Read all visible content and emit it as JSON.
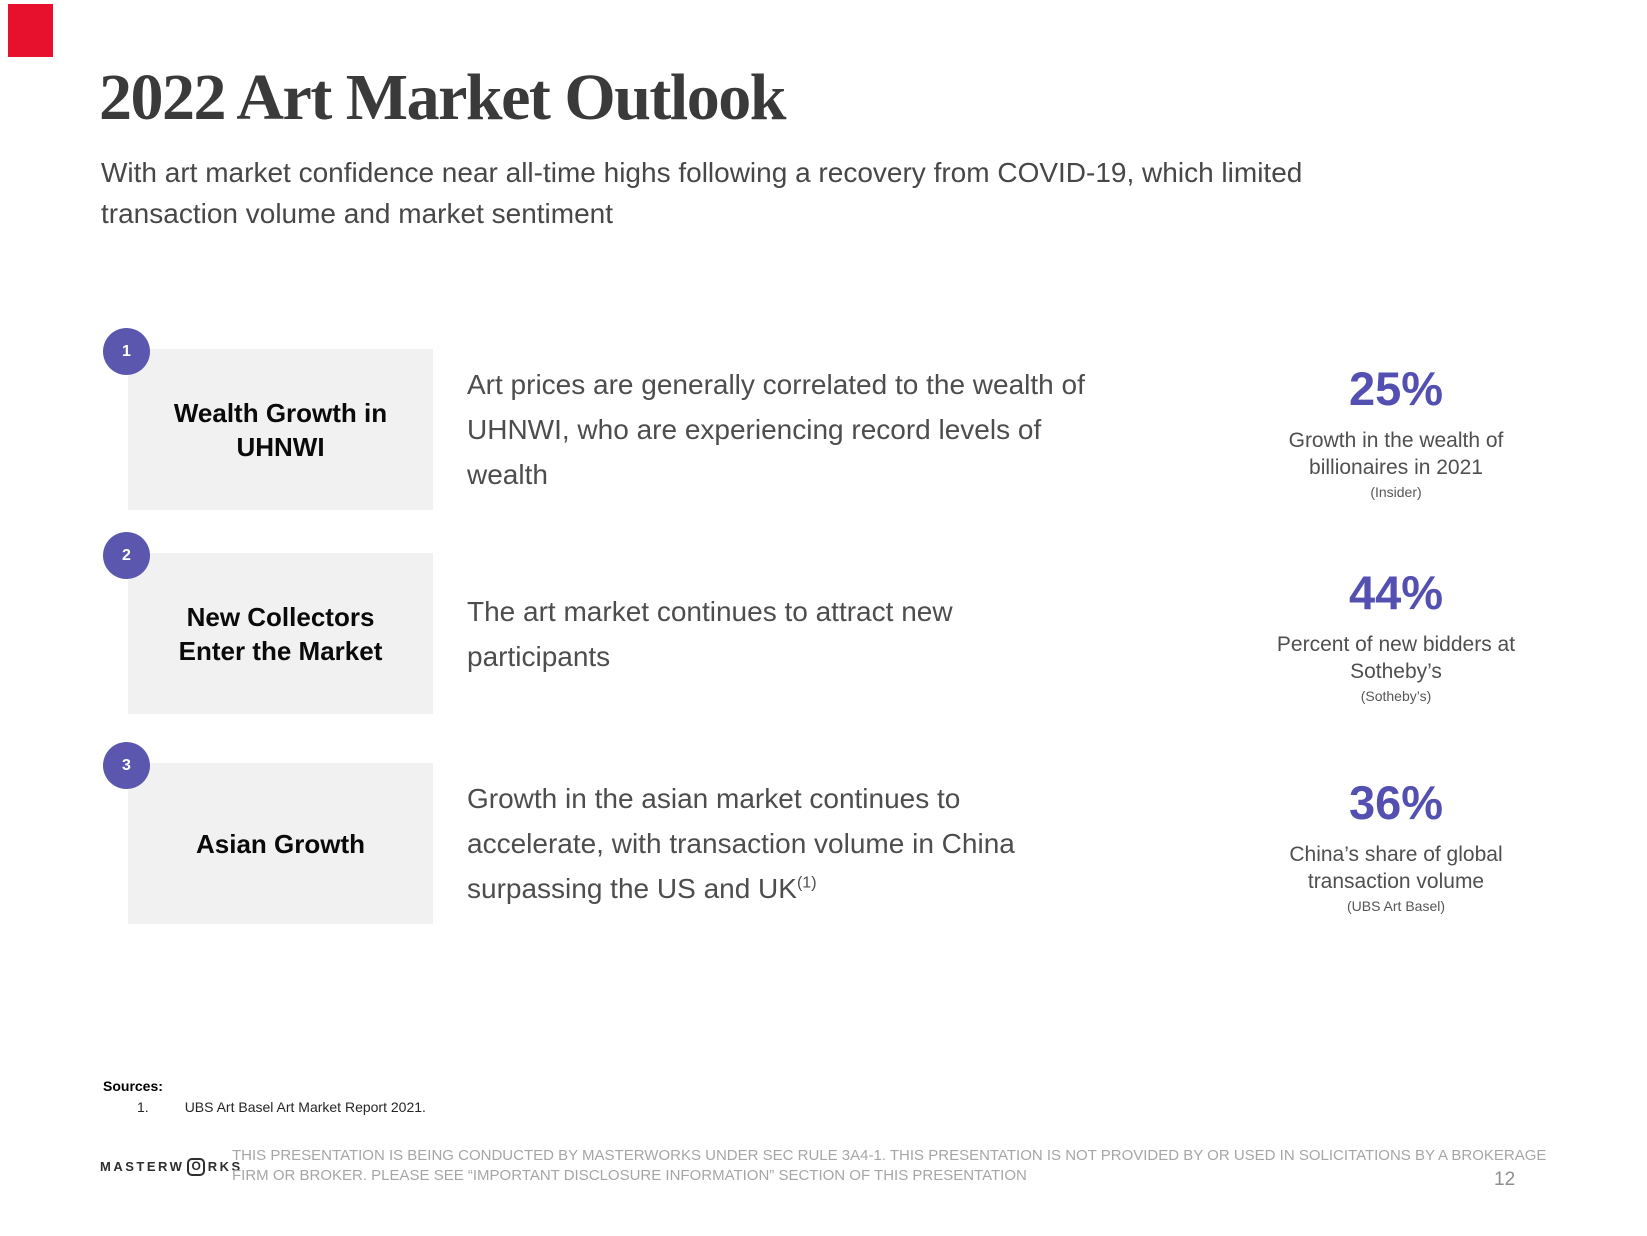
{
  "corner_marker": {
    "color": "#e8112d"
  },
  "header": {
    "title": "2022 Art Market Outlook",
    "subtitle_lines": [
      "With art market confidence near all-time highs following a recovery from COVID-19, which limited",
      "transaction volume and market sentiment"
    ]
  },
  "rows": [
    {
      "number": "1",
      "label_lines": [
        "Wealth Growth in",
        "UHNWI"
      ],
      "desc_lines": [
        "Art prices are generally correlated to the wealth of",
        "UHNWI, who are experiencing record levels of",
        "wealth"
      ],
      "stat": {
        "value": "25%",
        "caption_lines": [
          "Growth in the wealth of",
          "billionaires in 2021"
        ],
        "source": "(Insider)"
      }
    },
    {
      "number": "2",
      "label_lines": [
        "New Collectors",
        "Enter the Market"
      ],
      "desc_lines": [
        "The art market continues to attract new",
        "participants"
      ],
      "stat": {
        "value": "44%",
        "caption_lines": [
          "Percent of new bidders at",
          "Sotheby’s"
        ],
        "source": "(Sotheby’s)"
      }
    },
    {
      "number": "3",
      "label_lines": [
        "Asian Growth"
      ],
      "desc_lines": [
        "Growth in the asian market continues to",
        "accelerate, with transaction volume in China",
        "surpassing the US and UK"
      ],
      "desc_superscript": "(1)",
      "stat": {
        "value": "36%",
        "caption_lines": [
          "China’s share of global",
          "transaction volume"
        ],
        "source": "(UBS Art Basel)"
      }
    }
  ],
  "sources": {
    "heading": "Sources:",
    "items": [
      {
        "index": "1.",
        "text": "UBS Art Basel Art Market Report 2021."
      }
    ]
  },
  "footer": {
    "logo": {
      "prefix": "MASTERW",
      "boxed_letter": "O",
      "suffix": "RKS"
    },
    "disclaimer_lines": [
      "THIS PRESENTATION  IS BEING CONDUCTED BY MASTERWORKS UNDER SEC RULE 3A4-1. THIS PRESENTATION  IS NOT PROVIDED BY OR USED IN SOLICITATIONS BY A BROKERAGE",
      "FIRM OR BROKER. PLEASE SEE “IMPORTANT DISCLOSURE INFORMATION” SECTION OF THIS PRESENTATION"
    ],
    "page_number": "12"
  },
  "colors": {
    "accent_purple": "#5450b2",
    "badge_purple": "#5b57ae",
    "label_box_bg": "#f1f1f1",
    "marker_red": "#e8112d"
  }
}
